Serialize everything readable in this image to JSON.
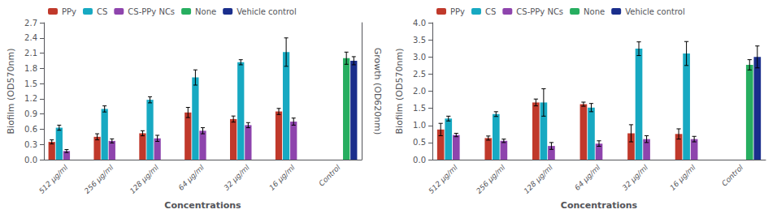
{
  "chart_data": [
    {
      "type": "bar",
      "x_label": "Concentrations",
      "y_label": "Biofilm (OD570nm)",
      "y2_label": "Growth (OD620nm)",
      "categories": [
        "512 μg/ml",
        "256 μg/ml",
        "128 μg/ml",
        "64 μg/ml",
        "32 μg/ml",
        "16 μg/ml",
        "Control"
      ],
      "series": [
        {
          "name": "PPy",
          "color": "#c0392b",
          "values": [
            0.35,
            0.45,
            0.52,
            0.93,
            0.8,
            0.95,
            null
          ],
          "errors": [
            0.04,
            0.06,
            0.05,
            0.1,
            0.06,
            0.06,
            0
          ]
        },
        {
          "name": "CS",
          "color": "#17a9c2",
          "values": [
            0.63,
            1.0,
            1.18,
            1.62,
            1.92,
            2.12,
            null
          ],
          "errors": [
            0.05,
            0.06,
            0.06,
            0.15,
            0.05,
            0.28,
            0
          ]
        },
        {
          "name": "CS-PPy NCs",
          "color": "#8e44ad",
          "values": [
            0.17,
            0.37,
            0.42,
            0.57,
            0.68,
            0.75,
            null
          ],
          "errors": [
            0.03,
            0.04,
            0.06,
            0.06,
            0.05,
            0.07,
            0
          ]
        },
        {
          "name": "None",
          "color": "#27ae60",
          "values": [
            null,
            null,
            null,
            null,
            null,
            null,
            2.0
          ],
          "errors": [
            0,
            0,
            0,
            0,
            0,
            0,
            0.12
          ]
        },
        {
          "name": "Vehicle control",
          "color": "#1a2e8c",
          "values": [
            null,
            null,
            null,
            null,
            null,
            null,
            1.95
          ],
          "errors": [
            0,
            0,
            0,
            0,
            0,
            0,
            0.08
          ]
        }
      ],
      "ylim": [
        0,
        2.7
      ],
      "yticks": [
        {
          "value": 0,
          "label": "0.0"
        },
        0.3,
        0.6,
        0.9,
        1.2,
        1.5,
        1.8,
        2.1,
        2.4,
        2.7
      ],
      "y2lim": [
        0,
        2.7
      ],
      "grid": false,
      "legend": "upper left"
    },
    {
      "type": "bar",
      "x_label": "Concentrations",
      "y_label": "Biofilm (OD570nm)",
      "categories": [
        "512 μg/ml",
        "256 μg/ml",
        "128 μg/ml",
        "64 μg/ml",
        "32 μg/ml",
        "16 μg/ml",
        "Control"
      ],
      "series": [
        {
          "name": "PPy",
          "color": "#c0392b",
          "values": [
            0.88,
            0.63,
            1.67,
            1.62,
            0.77,
            0.75,
            null
          ],
          "errors": [
            0.18,
            0.06,
            0.1,
            0.06,
            0.25,
            0.15,
            0
          ]
        },
        {
          "name": "CS",
          "color": "#17a9c2",
          "values": [
            1.2,
            1.33,
            1.67,
            1.52,
            3.24,
            3.1,
            null
          ],
          "errors": [
            0.07,
            0.07,
            0.4,
            0.12,
            0.2,
            0.35,
            0
          ]
        },
        {
          "name": "CS-PPy NCs",
          "color": "#8e44ad",
          "values": [
            0.72,
            0.55,
            0.4,
            0.47,
            0.6,
            0.6,
            null
          ],
          "errors": [
            0.05,
            0.05,
            0.1,
            0.08,
            0.1,
            0.08,
            0
          ]
        },
        {
          "name": "None",
          "color": "#27ae60",
          "values": [
            null,
            null,
            null,
            null,
            null,
            null,
            2.77
          ],
          "errors": [
            0,
            0,
            0,
            0,
            0,
            0,
            0.15
          ]
        },
        {
          "name": "Vehicle control",
          "color": "#1a2e8c",
          "values": [
            null,
            null,
            null,
            null,
            null,
            null,
            3.0
          ],
          "errors": [
            0,
            0,
            0,
            0,
            0,
            0,
            0.32
          ]
        }
      ],
      "ylim": [
        0,
        4.0
      ],
      "yticks": [
        {
          "value": 0,
          "label": "0.0"
        },
        0.5,
        {
          "value": 1,
          "label": "1.0"
        },
        1.5,
        {
          "value": 2,
          "label": "2.0"
        },
        2.5,
        {
          "value": 3,
          "label": "3.0"
        },
        3.5,
        {
          "value": 4,
          "label": "4.0"
        }
      ],
      "grid": false,
      "legend": "upper left"
    }
  ]
}
